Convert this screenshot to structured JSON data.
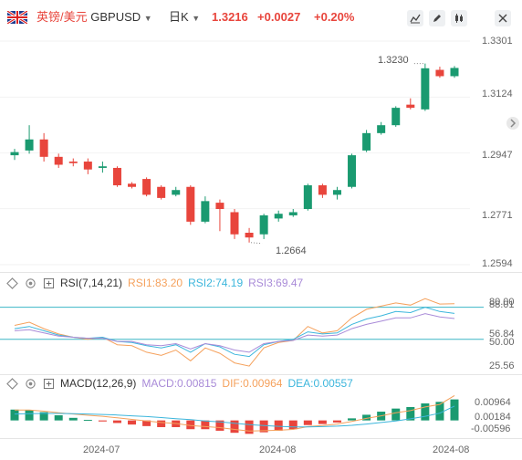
{
  "header": {
    "symbol_name": "英镑/美元",
    "symbol_code": "GBPUSD",
    "period": "日K",
    "price": "1.3216",
    "change": "+0.0027",
    "change_pct": "+0.20%",
    "up_color": "#e8453c",
    "down_color": "#1a9a70"
  },
  "toolbar": {
    "icons": [
      "line-chart-icon",
      "draw-pen-icon",
      "candle-icon",
      "close-icon"
    ]
  },
  "price_axis": {
    "labels": [
      "1.3301",
      "1.3124",
      "1.2947",
      "1.2771",
      "1.2594"
    ],
    "top_label_color": "#e8453c"
  },
  "annotations": {
    "high": "1.3230",
    "low": "1.2664"
  },
  "rsi": {
    "title": "RSI(7,14,21)",
    "rsi1_label": "RSI1:83.20",
    "rsi1_color": "#f5a15c",
    "rsi2_label": "RSI2:74.19",
    "rsi2_color": "#3cb6dc",
    "rsi3_label": "RSI3:69.47",
    "rsi3_color": "#a98bd8",
    "axis_labels": [
      "80.00",
      "88.01",
      "56.84",
      "50.00",
      "25.56"
    ],
    "levels": [
      80,
      50
    ]
  },
  "macd": {
    "title": "MACD(12,26,9)",
    "macd_label": "MACD:0.00815",
    "macd_color": "#a98bd8",
    "dif_label": "DIF:0.00964",
    "dif_color": "#f5a15c",
    "dea_label": "DEA:0.00557",
    "dea_color": "#3cb6dc",
    "axis_labels": [
      "0.00964",
      "0.00184",
      "-0.00596"
    ]
  },
  "x_axis": {
    "labels": [
      "2024-07",
      "2024-08",
      "2024-08"
    ]
  },
  "chart_data": {
    "type": "candlestick",
    "ylim": [
      1.2594,
      1.3301
    ],
    "candles": [
      {
        "o": 1.294,
        "c": 1.295,
        "h": 1.296,
        "l": 1.2925
      },
      {
        "o": 1.2955,
        "c": 1.299,
        "h": 1.3035,
        "l": 1.2945
      },
      {
        "o": 1.299,
        "c": 1.2935,
        "h": 1.301,
        "l": 1.292
      },
      {
        "o": 1.2935,
        "c": 1.291,
        "h": 1.2945,
        "l": 1.29
      },
      {
        "o": 1.292,
        "c": 1.2915,
        "h": 1.293,
        "l": 1.2905
      },
      {
        "o": 1.292,
        "c": 1.2895,
        "h": 1.293,
        "l": 1.288
      },
      {
        "o": 1.29,
        "c": 1.2905,
        "h": 1.292,
        "l": 1.2885
      },
      {
        "o": 1.29,
        "c": 1.2845,
        "h": 1.2905,
        "l": 1.284
      },
      {
        "o": 1.285,
        "c": 1.284,
        "h": 1.2855,
        "l": 1.2835
      },
      {
        "o": 1.2865,
        "c": 1.2815,
        "h": 1.287,
        "l": 1.281
      },
      {
        "o": 1.284,
        "c": 1.2805,
        "h": 1.2845,
        "l": 1.28
      },
      {
        "o": 1.2815,
        "c": 1.283,
        "h": 1.284,
        "l": 1.281
      },
      {
        "o": 1.284,
        "c": 1.273,
        "h": 1.2845,
        "l": 1.272
      },
      {
        "o": 1.273,
        "c": 1.2795,
        "h": 1.281,
        "l": 1.2725
      },
      {
        "o": 1.279,
        "c": 1.277,
        "h": 1.28,
        "l": 1.27
      },
      {
        "o": 1.276,
        "c": 1.269,
        "h": 1.277,
        "l": 1.2675
      },
      {
        "o": 1.2695,
        "c": 1.268,
        "h": 1.271,
        "l": 1.2664
      },
      {
        "o": 1.269,
        "c": 1.275,
        "h": 1.2755,
        "l": 1.2675
      },
      {
        "o": 1.274,
        "c": 1.2755,
        "h": 1.2765,
        "l": 1.273
      },
      {
        "o": 1.275,
        "c": 1.276,
        "h": 1.277,
        "l": 1.2745
      },
      {
        "o": 1.277,
        "c": 1.2845,
        "h": 1.285,
        "l": 1.2765
      },
      {
        "o": 1.2845,
        "c": 1.2815,
        "h": 1.285,
        "l": 1.2805
      },
      {
        "o": 1.2815,
        "c": 1.283,
        "h": 1.284,
        "l": 1.28
      },
      {
        "o": 1.284,
        "c": 1.294,
        "h": 1.2945,
        "l": 1.2835
      },
      {
        "o": 1.2955,
        "c": 1.301,
        "h": 1.302,
        "l": 1.295
      },
      {
        "o": 1.301,
        "c": 1.3035,
        "h": 1.3045,
        "l": 1.3005
      },
      {
        "o": 1.3035,
        "c": 1.309,
        "h": 1.3095,
        "l": 1.303
      },
      {
        "o": 1.31,
        "c": 1.309,
        "h": 1.312,
        "l": 1.3085
      },
      {
        "o": 1.3085,
        "c": 1.3215,
        "h": 1.323,
        "l": 1.308
      },
      {
        "o": 1.321,
        "c": 1.319,
        "h": 1.322,
        "l": 1.3185
      },
      {
        "o": 1.319,
        "c": 1.3216,
        "h": 1.3222,
        "l": 1.3185
      }
    ],
    "rsi_ylim": [
      20,
      95
    ],
    "rsi1": [
      63,
      66,
      60,
      55,
      52,
      50,
      52,
      45,
      44,
      38,
      35,
      40,
      30,
      42,
      37,
      28,
      25,
      42,
      47,
      49,
      62,
      56,
      58,
      70,
      78,
      81,
      84,
      82,
      88,
      83,
      83.2
    ],
    "rsi2": [
      60,
      62,
      58,
      54,
      52,
      51,
      52,
      48,
      47,
      44,
      42,
      45,
      38,
      46,
      43,
      36,
      34,
      45,
      48,
      50,
      57,
      55,
      56,
      64,
      69,
      72,
      76,
      75,
      80,
      76,
      74.19
    ],
    "rsi3": [
      58,
      59,
      56,
      53,
      52,
      51,
      51,
      48,
      48,
      45,
      44,
      46,
      41,
      46,
      44,
      40,
      38,
      46,
      48,
      49,
      54,
      53,
      54,
      60,
      64,
      67,
      70,
      70,
      74,
      71,
      69.47
    ],
    "macd_ylim": [
      -0.0065,
      0.0112
    ],
    "macd_hist": [
      0.0042,
      0.004,
      0.0032,
      0.002,
      0.001,
      0.0002,
      -0.0004,
      -0.001,
      -0.0016,
      -0.0022,
      -0.0026,
      -0.0026,
      -0.0034,
      -0.0034,
      -0.004,
      -0.0048,
      -0.0052,
      -0.0046,
      -0.004,
      -0.0034,
      -0.0018,
      -0.0014,
      -0.0008,
      0.0008,
      0.0022,
      0.0034,
      0.0046,
      0.0052,
      0.0066,
      0.0072,
      0.00815
    ],
    "dif": [
      0.004,
      0.004,
      0.0036,
      0.003,
      0.0025,
      0.002,
      0.0016,
      0.001,
      0.0004,
      -0.0002,
      -0.0008,
      -0.0012,
      -0.002,
      -0.0024,
      -0.0028,
      -0.0035,
      -0.0041,
      -0.004,
      -0.0038,
      -0.0035,
      -0.0024,
      -0.002,
      -0.0014,
      -0.0004,
      0.0008,
      0.0018,
      0.003,
      0.0038,
      0.0052,
      0.0062,
      0.00964
    ],
    "dea": [
      0.0025,
      0.0026,
      0.0027,
      0.0027,
      0.0026,
      0.0025,
      0.0023,
      0.0021,
      0.0018,
      0.0015,
      0.0011,
      0.0007,
      0.0003,
      -0.0002,
      -0.0006,
      -0.0011,
      -0.0016,
      -0.002,
      -0.0023,
      -0.0025,
      -0.0025,
      -0.0024,
      -0.0022,
      -0.0019,
      -0.0014,
      -0.0008,
      -0.0002,
      0.0006,
      0.0016,
      0.0028,
      0.00557
    ]
  }
}
